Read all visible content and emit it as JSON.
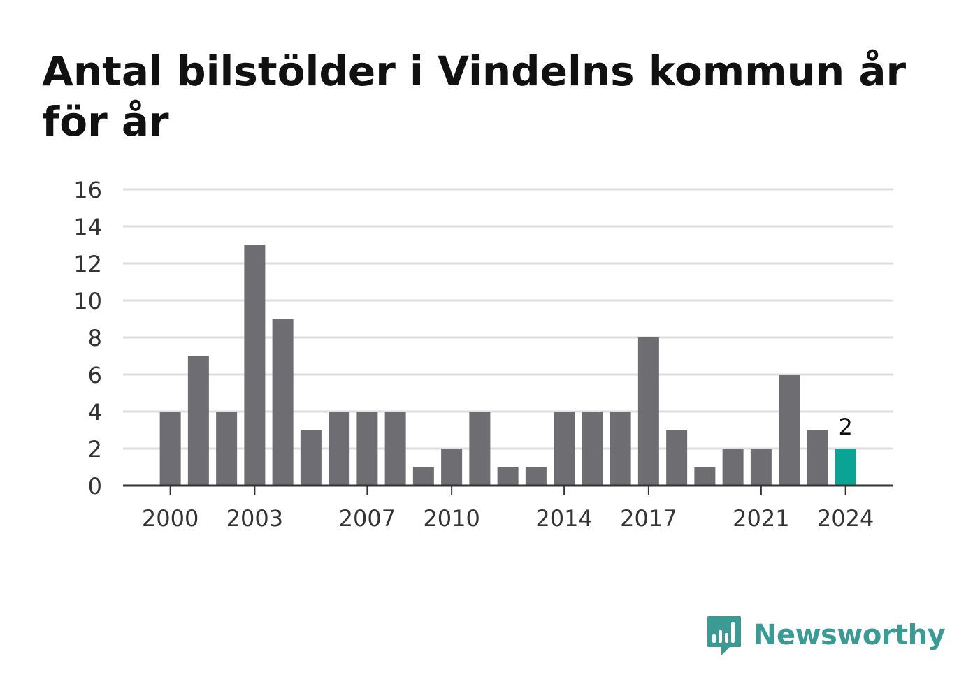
{
  "title": "Antal bilstölder i Vindelns kommun år för år",
  "chart_data": {
    "type": "bar",
    "title": "Antal bilstölder i Vindelns kommun år för år",
    "x": [
      2000,
      2001,
      2002,
      2003,
      2004,
      2005,
      2006,
      2007,
      2008,
      2009,
      2010,
      2011,
      2012,
      2013,
      2014,
      2015,
      2016,
      2017,
      2018,
      2019,
      2020,
      2021,
      2022,
      2023,
      2024
    ],
    "values": [
      4,
      7,
      4,
      13,
      9,
      3,
      4,
      4,
      4,
      1,
      2,
      4,
      1,
      1,
      4,
      4,
      4,
      8,
      3,
      1,
      2,
      2,
      6,
      3,
      2
    ],
    "x_tick_labels": [
      "2000",
      "2003",
      "2007",
      "2010",
      "2014",
      "2017",
      "2021",
      "2024"
    ],
    "y_tick_labels": [
      "0",
      "2",
      "4",
      "6",
      "8",
      "10",
      "12",
      "14",
      "16"
    ],
    "ylim": [
      0,
      16
    ],
    "grid": true,
    "highlight": {
      "year": 2024,
      "label": "2"
    },
    "colors": {
      "bar": "#6e6d72",
      "highlight": "#0aa394",
      "grid": "#dddddd",
      "axis": "#333333"
    }
  },
  "brand": {
    "name": "Newsworthy",
    "icon": "bar-chart-speech-bubble-icon",
    "color": "#3c9a94"
  }
}
